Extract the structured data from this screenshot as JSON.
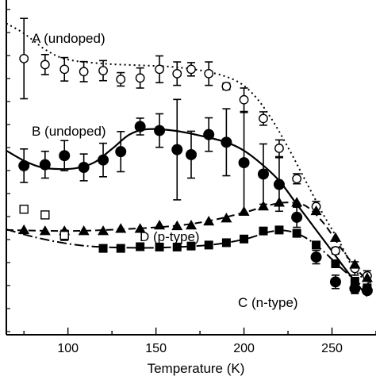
{
  "chart_data": {
    "type": "scatter",
    "xlabel": "Temperature (K)",
    "ylabel": "",
    "xlim": [
      65,
      275
    ],
    "ylim": [
      0,
      1
    ],
    "x_ticks": [
      100,
      150,
      200,
      250
    ],
    "grid": false,
    "series": [
      {
        "name": "A (undoped)",
        "marker": "open-circle",
        "line_style": "dotted",
        "points": [
          {
            "x": 75,
            "y": 0.825,
            "err": 0.12
          },
          {
            "x": 87,
            "y": 0.807,
            "err": 0.03
          },
          {
            "x": 98,
            "y": 0.793,
            "err": 0.035
          },
          {
            "x": 109,
            "y": 0.786,
            "err": 0.03
          },
          {
            "x": 120,
            "y": 0.789,
            "err": 0.03
          },
          {
            "x": 130,
            "y": 0.763,
            "err": 0.02
          },
          {
            "x": 141,
            "y": 0.767,
            "err": 0.03
          },
          {
            "x": 152,
            "y": 0.793,
            "err": 0.04
          },
          {
            "x": 162,
            "y": 0.78,
            "err": 0.035
          },
          {
            "x": 170,
            "y": 0.793,
            "err": 0.02
          },
          {
            "x": 180,
            "y": 0.78,
            "err": 0.035
          },
          {
            "x": 190,
            "y": 0.742,
            "err": 0.01
          },
          {
            "x": 200,
            "y": 0.702,
            "err": 0.035
          },
          {
            "x": 211,
            "y": 0.646,
            "err": 0.02
          },
          {
            "x": 220,
            "y": 0.557,
            "err": 0.025
          },
          {
            "x": 230,
            "y": 0.466,
            "err": 0.015
          },
          {
            "x": 241,
            "y": 0.383,
            "err": 0.015
          },
          {
            "x": 252,
            "y": 0.251,
            "err": 0.01
          },
          {
            "x": 263,
            "y": 0.198,
            "err": 0.02
          },
          {
            "x": 270,
            "y": 0.176,
            "err": 0.015
          }
        ],
        "fit": [
          [
            65,
            0.93
          ],
          [
            75,
            0.9
          ],
          [
            88,
            0.849
          ],
          [
            100,
            0.822
          ],
          [
            120,
            0.81
          ],
          [
            140,
            0.805
          ],
          [
            160,
            0.8
          ],
          [
            180,
            0.785
          ],
          [
            195,
            0.76
          ],
          [
            205,
            0.72
          ],
          [
            215,
            0.65
          ],
          [
            225,
            0.56
          ],
          [
            235,
            0.46
          ],
          [
            245,
            0.36
          ],
          [
            255,
            0.27
          ],
          [
            262,
            0.2
          ],
          [
            272,
            0.147
          ]
        ]
      },
      {
        "name": "B (undoped)",
        "marker": "filled-circle",
        "line_style": "solid",
        "points": [
          {
            "x": 75,
            "y": 0.505,
            "err": 0.05
          },
          {
            "x": 87,
            "y": 0.508,
            "err": 0.04
          },
          {
            "x": 98,
            "y": 0.535,
            "err": 0.045
          },
          {
            "x": 109,
            "y": 0.5,
            "err": 0.04
          },
          {
            "x": 120,
            "y": 0.522,
            "err": 0.05
          },
          {
            "x": 130,
            "y": 0.547,
            "err": 0.06
          },
          {
            "x": 141,
            "y": 0.622,
            "err": 0.025
          },
          {
            "x": 152,
            "y": 0.61,
            "err": 0.05
          },
          {
            "x": 162,
            "y": 0.553,
            "err": 0.15
          },
          {
            "x": 170,
            "y": 0.538,
            "err": 0.07
          },
          {
            "x": 180,
            "y": 0.598,
            "err": 0.05
          },
          {
            "x": 190,
            "y": 0.575,
            "err": 0.1
          },
          {
            "x": 200,
            "y": 0.514,
            "err": 0.15
          },
          {
            "x": 211,
            "y": 0.48,
            "err": 0.09
          },
          {
            "x": 220,
            "y": 0.449,
            "err": 0.08
          },
          {
            "x": 230,
            "y": 0.351,
            "err": 0.03
          },
          {
            "x": 241,
            "y": 0.232,
            "err": 0.02
          },
          {
            "x": 252,
            "y": 0.158,
            "err": 0.02
          },
          {
            "x": 263,
            "y": 0.138,
            "err": 0.015
          },
          {
            "x": 270,
            "y": 0.132,
            "err": 0.01
          }
        ],
        "fit": [
          [
            65,
            0.55
          ],
          [
            75,
            0.52
          ],
          [
            85,
            0.5
          ],
          [
            95,
            0.495
          ],
          [
            105,
            0.498
          ],
          [
            115,
            0.515
          ],
          [
            125,
            0.555
          ],
          [
            135,
            0.598
          ],
          [
            145,
            0.614
          ],
          [
            160,
            0.61
          ],
          [
            175,
            0.595
          ],
          [
            190,
            0.575
          ],
          [
            200,
            0.55
          ],
          [
            210,
            0.51
          ],
          [
            220,
            0.46
          ],
          [
            230,
            0.39
          ],
          [
            240,
            0.32
          ],
          [
            250,
            0.25
          ],
          [
            260,
            0.18
          ],
          [
            270,
            0.115
          ]
        ]
      },
      {
        "name": "D (p-type)",
        "marker": "filled-triangle",
        "line_style": "dashed",
        "points": [
          {
            "x": 75,
            "y": 0.313
          },
          {
            "x": 87,
            "y": 0.31
          },
          {
            "x": 98,
            "y": 0.31
          },
          {
            "x": 109,
            "y": 0.31
          },
          {
            "x": 120,
            "y": 0.31
          },
          {
            "x": 130,
            "y": 0.317
          },
          {
            "x": 141,
            "y": 0.317
          },
          {
            "x": 152,
            "y": 0.327
          },
          {
            "x": 162,
            "y": 0.325
          },
          {
            "x": 170,
            "y": 0.327
          },
          {
            "x": 180,
            "y": 0.339
          },
          {
            "x": 190,
            "y": 0.348
          },
          {
            "x": 200,
            "y": 0.368
          },
          {
            "x": 211,
            "y": 0.384
          },
          {
            "x": 220,
            "y": 0.395
          },
          {
            "x": 230,
            "y": 0.395
          },
          {
            "x": 241,
            "y": 0.37
          },
          {
            "x": 252,
            "y": 0.29
          },
          {
            "x": 263,
            "y": 0.21
          },
          {
            "x": 270,
            "y": 0.17
          }
        ],
        "fit": [
          [
            65,
            0.313
          ],
          [
            100,
            0.31
          ],
          [
            130,
            0.315
          ],
          [
            160,
            0.325
          ],
          [
            180,
            0.34
          ],
          [
            200,
            0.365
          ],
          [
            215,
            0.388
          ],
          [
            225,
            0.395
          ],
          [
            235,
            0.385
          ],
          [
            245,
            0.335
          ],
          [
            255,
            0.26
          ],
          [
            265,
            0.19
          ],
          [
            272,
            0.155
          ]
        ]
      },
      {
        "name": "C (n-type)",
        "marker": "filled-square",
        "line_style": "dash-dot",
        "points": [
          {
            "x": 120,
            "y": 0.258
          },
          {
            "x": 130,
            "y": 0.258
          },
          {
            "x": 141,
            "y": 0.263
          },
          {
            "x": 152,
            "y": 0.262
          },
          {
            "x": 162,
            "y": 0.262
          },
          {
            "x": 170,
            "y": 0.265
          },
          {
            "x": 180,
            "y": 0.268
          },
          {
            "x": 190,
            "y": 0.275
          },
          {
            "x": 200,
            "y": 0.286
          },
          {
            "x": 211,
            "y": 0.31
          },
          {
            "x": 220,
            "y": 0.313
          },
          {
            "x": 230,
            "y": 0.303
          },
          {
            "x": 241,
            "y": 0.268
          },
          {
            "x": 252,
            "y": 0.212
          },
          {
            "x": 263,
            "y": 0.16
          },
          {
            "x": 270,
            "y": 0.14
          }
        ],
        "fit": [
          [
            65,
            0.315
          ],
          [
            80,
            0.293
          ],
          [
            100,
            0.272
          ],
          [
            120,
            0.262
          ],
          [
            150,
            0.26
          ],
          [
            180,
            0.268
          ],
          [
            200,
            0.285
          ],
          [
            215,
            0.308
          ],
          [
            225,
            0.31
          ],
          [
            235,
            0.29
          ],
          [
            245,
            0.25
          ],
          [
            255,
            0.2
          ],
          [
            265,
            0.155
          ],
          [
            272,
            0.125
          ]
        ]
      },
      {
        "name": "",
        "marker": "open-square",
        "line_style": "none",
        "points": [
          {
            "x": 75,
            "y": 0.375
          },
          {
            "x": 87,
            "y": 0.358
          },
          {
            "x": 98,
            "y": 0.297,
            "err": 0.015
          }
        ]
      }
    ]
  }
}
